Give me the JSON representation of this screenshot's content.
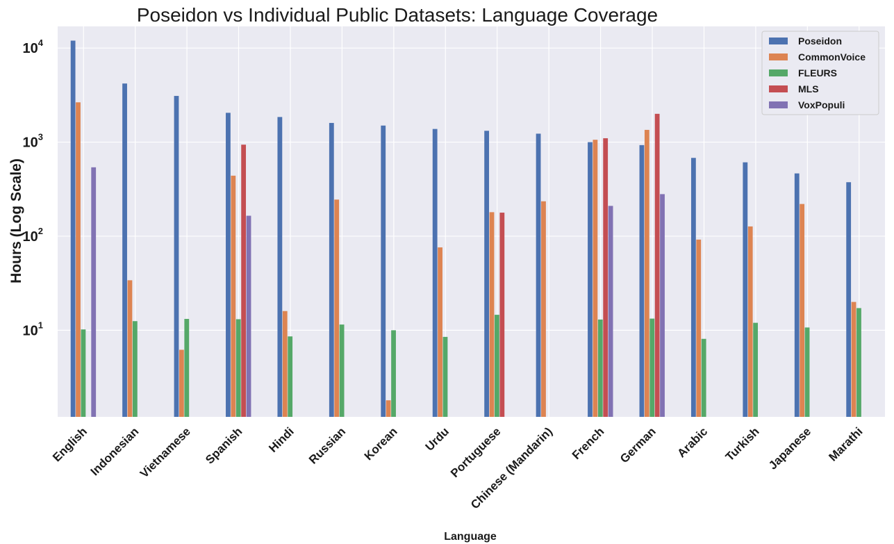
{
  "chart_data": {
    "type": "bar",
    "title": "Poseidon vs Individual Public Datasets: Language Coverage",
    "xlabel": "Language",
    "ylabel": "Hours (Log Scale)",
    "yscale": "log",
    "ylim": [
      1.2,
      17000
    ],
    "yticks": [
      {
        "value": 10,
        "base": "10",
        "exp": "1"
      },
      {
        "value": 100,
        "base": "10",
        "exp": "2"
      },
      {
        "value": 1000,
        "base": "10",
        "exp": "3"
      },
      {
        "value": 10000,
        "base": "10",
        "exp": "4"
      }
    ],
    "grid": true,
    "legend_position": "top-right",
    "categories": [
      "English",
      "Indonesian",
      "Vietnamese",
      "Spanish",
      "Hindi",
      "Russian",
      "Korean",
      "Urdu",
      "Portuguese",
      "Chinese (Mandarin)",
      "French",
      "German",
      "Arabic",
      "Turkish",
      "Japanese",
      "Marathi"
    ],
    "series": [
      {
        "name": "Poseidon",
        "color": "#4c72b0",
        "values": [
          12000,
          4200,
          3100,
          2050,
          1850,
          1600,
          1500,
          1380,
          1320,
          1230,
          1000,
          930,
          680,
          610,
          465,
          375
        ]
      },
      {
        "name": "CommonVoice",
        "color": "#dd8452",
        "values": [
          2650,
          34,
          6.2,
          440,
          16,
          245,
          1.8,
          76,
          180,
          235,
          1060,
          1350,
          92,
          127,
          220,
          20
        ]
      },
      {
        "name": "FLEURS",
        "color": "#55a868",
        "values": [
          10.2,
          12.5,
          13.2,
          13.1,
          8.6,
          11.5,
          10,
          8.5,
          14.6,
          0,
          13,
          13.3,
          8.1,
          12,
          10.7,
          17.2
        ]
      },
      {
        "name": "MLS",
        "color": "#c44e52",
        "values": [
          0,
          0,
          0,
          940,
          0,
          0,
          0,
          0,
          178,
          0,
          1100,
          2000,
          0,
          0,
          0,
          0
        ]
      },
      {
        "name": "VoxPopuli",
        "color": "#8172b3",
        "values": [
          540,
          0,
          0,
          165,
          0,
          0,
          0,
          0,
          0,
          0,
          210,
          280,
          0,
          0,
          0,
          0
        ]
      }
    ]
  }
}
